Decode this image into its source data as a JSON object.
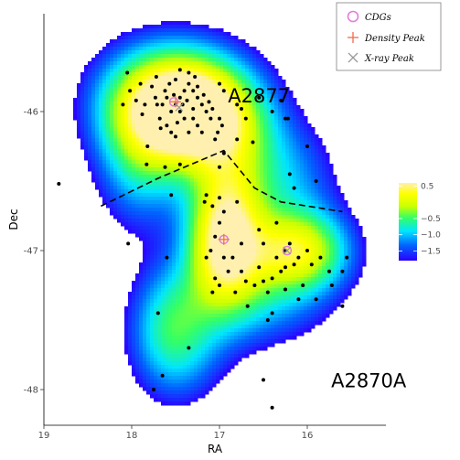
{
  "chart_data": {
    "type": "scatter",
    "xlabel": "RA",
    "ylabel": "Dec",
    "xlim": [
      19,
      15.1
    ],
    "ylim": [
      -48.3,
      -45.55
    ],
    "x_ticks": [
      19,
      18,
      17,
      16
    ],
    "x_tick_labels": [
      "19",
      "18",
      "17",
      "16"
    ],
    "y_ticks": [
      -46,
      -47,
      -48
    ],
    "y_tick_labels": [
      "-46",
      "-47",
      "-48"
    ],
    "annotations": [
      {
        "text": "A2877",
        "x": 16.55,
        "y": -45.88
      },
      {
        "text": "A2870A",
        "x": 15.3,
        "y": -47.93
      }
    ],
    "legend": {
      "placement": "top-right",
      "entries": [
        {
          "label": "CDGs",
          "marker": "open-circle",
          "color": "#e07de0"
        },
        {
          "label": "Density Peak",
          "marker": "plus",
          "color": "#f26a4f"
        },
        {
          "label": "X-ray Peak",
          "marker": "x",
          "color": "#999999"
        }
      ]
    },
    "colorbar": {
      "ticks": [
        0.5,
        -0.5,
        -1.0,
        -1.5
      ],
      "tick_labels": [
        "0.5",
        "−0.5",
        "−1.0",
        "−1.5"
      ],
      "range": [
        -1.8,
        0.6
      ],
      "colors": [
        "#2b00ff",
        "#0066ff",
        "#00e5ff",
        "#33ff66",
        "#ccff00",
        "#ffff00",
        "#fff0b0"
      ]
    },
    "density": [
      {
        "x": 17.5,
        "y": -45.93,
        "w": 1.0,
        "sx": 0.55,
        "sy": 0.28
      },
      {
        "x": 17.1,
        "y": -46.1,
        "w": 0.55,
        "sx": 0.45,
        "sy": 0.25
      },
      {
        "x": 16.95,
        "y": -46.95,
        "w": 0.85,
        "sx": 0.3,
        "sy": 0.3
      },
      {
        "x": 16.1,
        "y": -47.0,
        "w": 0.7,
        "sx": 0.4,
        "sy": 0.2
      },
      {
        "x": 16.6,
        "y": -47.35,
        "w": 0.3,
        "sx": 0.6,
        "sy": 0.25
      },
      {
        "x": 16.3,
        "y": -46.5,
        "w": 0.3,
        "sx": 0.45,
        "sy": 0.3
      },
      {
        "x": 17.45,
        "y": -47.7,
        "w": 0.28,
        "sx": 0.38,
        "sy": 0.3
      },
      {
        "x": 17.6,
        "y": -47.5,
        "w": 0.22,
        "sx": 0.3,
        "sy": 0.3
      },
      {
        "x": 17.9,
        "y": -46.35,
        "w": 0.35,
        "sx": 0.35,
        "sy": 0.35
      },
      {
        "x": 16.9,
        "y": -46.55,
        "w": 0.25,
        "sx": 0.3,
        "sy": 0.25
      }
    ],
    "boundary": [
      [
        18.35,
        -46.68
      ],
      [
        17.7,
        -46.48
      ],
      [
        16.95,
        -46.28
      ],
      [
        16.6,
        -46.55
      ],
      [
        16.3,
        -46.65
      ],
      [
        15.6,
        -46.72
      ]
    ],
    "galaxies": [
      [
        18.83,
        -46.52
      ],
      [
        17.83,
        -46.38
      ],
      [
        18.04,
        -46.95
      ],
      [
        17.82,
        -46.25
      ],
      [
        17.67,
        -46.12
      ],
      [
        17.6,
        -46.1
      ],
      [
        17.5,
        -46.18
      ],
      [
        17.62,
        -45.85
      ],
      [
        17.57,
        -45.8
      ],
      [
        17.71,
        -45.95
      ],
      [
        17.73,
        -45.9
      ],
      [
        17.65,
        -45.95
      ],
      [
        17.6,
        -45.9
      ],
      [
        17.55,
        -46.0
      ],
      [
        17.5,
        -45.95
      ],
      [
        17.45,
        -45.9
      ],
      [
        17.4,
        -45.85
      ],
      [
        17.35,
        -45.8
      ],
      [
        17.3,
        -45.85
      ],
      [
        17.25,
        -45.9
      ],
      [
        17.2,
        -45.95
      ],
      [
        17.15,
        -46.0
      ],
      [
        17.1,
        -46.05
      ],
      [
        17.4,
        -46.05
      ],
      [
        17.45,
        -46.0
      ],
      [
        17.3,
        -46.05
      ],
      [
        17.25,
        -46.1
      ],
      [
        17.35,
        -46.15
      ],
      [
        17.2,
        -46.15
      ],
      [
        17.05,
        -46.2
      ],
      [
        17.5,
        -45.77
      ],
      [
        17.45,
        -45.7
      ],
      [
        17.35,
        -45.72
      ],
      [
        17.28,
        -45.75
      ],
      [
        17.72,
        -45.75
      ],
      [
        17.77,
        -45.82
      ],
      [
        17.85,
        -45.95
      ],
      [
        17.68,
        -46.05
      ],
      [
        17.55,
        -46.15
      ],
      [
        17.48,
        -46.08
      ],
      [
        17.42,
        -45.95
      ],
      [
        17.52,
        -45.88
      ],
      [
        17.37,
        -45.92
      ],
      [
        17.3,
        -45.98
      ],
      [
        17.25,
        -45.82
      ],
      [
        17.18,
        -45.88
      ],
      [
        17.12,
        -45.93
      ],
      [
        17.08,
        -45.98
      ],
      [
        17.0,
        -46.05
      ],
      [
        16.97,
        -46.1
      ],
      [
        17.02,
        -46.15
      ],
      [
        16.8,
        -45.95
      ],
      [
        16.75,
        -45.98
      ],
      [
        16.7,
        -46.05
      ],
      [
        16.55,
        -45.9
      ],
      [
        16.95,
        -45.85
      ],
      [
        17.0,
        -45.8
      ],
      [
        18.02,
        -45.85
      ],
      [
        18.05,
        -45.72
      ],
      [
        17.95,
        -45.92
      ],
      [
        17.9,
        -45.8
      ],
      [
        17.88,
        -46.02
      ],
      [
        18.1,
        -45.95
      ],
      [
        16.4,
        -46.0
      ],
      [
        16.3,
        -45.92
      ],
      [
        16.25,
        -46.05
      ],
      [
        16.62,
        -46.22
      ],
      [
        16.8,
        -46.2
      ],
      [
        16.95,
        -46.3
      ],
      [
        17.0,
        -46.4
      ],
      [
        16.22,
        -46.05
      ],
      [
        16.0,
        -46.25
      ],
      [
        16.2,
        -46.45
      ],
      [
        16.15,
        -46.55
      ],
      [
        15.9,
        -46.5
      ],
      [
        16.35,
        -46.8
      ],
      [
        17.17,
        -46.65
      ],
      [
        17.08,
        -46.68
      ],
      [
        16.95,
        -46.72
      ],
      [
        16.8,
        -46.65
      ],
      [
        17.0,
        -46.8
      ],
      [
        17.05,
        -46.9
      ],
      [
        16.95,
        -47.05
      ],
      [
        16.9,
        -47.15
      ],
      [
        17.05,
        -47.2
      ],
      [
        17.0,
        -47.25
      ],
      [
        17.1,
        -47.0
      ],
      [
        17.15,
        -47.05
      ],
      [
        16.85,
        -47.05
      ],
      [
        16.75,
        -47.15
      ],
      [
        16.7,
        -47.22
      ],
      [
        16.6,
        -47.25
      ],
      [
        16.5,
        -47.22
      ],
      [
        16.45,
        -47.3
      ],
      [
        16.4,
        -47.2
      ],
      [
        16.3,
        -47.15
      ],
      [
        16.25,
        -47.0
      ],
      [
        16.2,
        -46.95
      ],
      [
        16.15,
        -47.1
      ],
      [
        16.1,
        -47.05
      ],
      [
        16.0,
        -47.0
      ],
      [
        15.95,
        -47.1
      ],
      [
        15.85,
        -47.05
      ],
      [
        15.75,
        -47.15
      ],
      [
        15.6,
        -47.15
      ],
      [
        15.55,
        -47.05
      ],
      [
        16.55,
        -46.85
      ],
      [
        16.5,
        -46.95
      ],
      [
        16.25,
        -47.28
      ],
      [
        16.1,
        -47.35
      ],
      [
        16.05,
        -47.25
      ],
      [
        15.9,
        -47.35
      ],
      [
        15.72,
        -47.25
      ],
      [
        16.68,
        -47.4
      ],
      [
        16.45,
        -47.5
      ],
      [
        16.4,
        -47.45
      ],
      [
        15.6,
        -47.4
      ],
      [
        17.62,
        -46.4
      ],
      [
        17.55,
        -46.6
      ],
      [
        17.15,
        -46.6
      ],
      [
        17.0,
        -46.62
      ],
      [
        17.6,
        -47.05
      ],
      [
        17.7,
        -47.45
      ],
      [
        17.35,
        -47.7
      ],
      [
        17.65,
        -47.9
      ],
      [
        17.75,
        -48.0
      ],
      [
        16.5,
        -47.93
      ],
      [
        16.4,
        -48.13
      ],
      [
        17.45,
        -46.38
      ],
      [
        17.08,
        -47.3
      ],
      [
        16.82,
        -47.3
      ],
      [
        16.25,
        -47.12
      ],
      [
        16.55,
        -47.12
      ],
      [
        16.35,
        -47.05
      ],
      [
        16.75,
        -46.95
      ]
    ],
    "cdgs": [
      [
        17.52,
        -45.93
      ],
      [
        16.95,
        -46.92
      ],
      [
        16.23,
        -47.0
      ]
    ],
    "density_peaks": [
      [
        17.5,
        -45.93
      ],
      [
        16.95,
        -46.92
      ]
    ],
    "xray_peaks": [
      [
        17.46,
        -45.97
      ],
      [
        16.23,
        -47.0
      ]
    ]
  }
}
